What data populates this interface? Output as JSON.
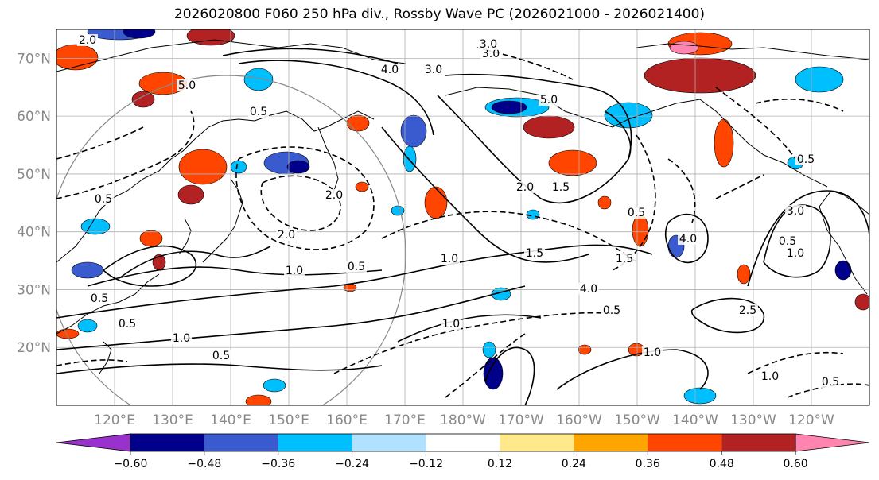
{
  "title": "2026020800 F060 250 hPa div., Rossby Wave PC (2026021000 - 2026021400)",
  "map": {
    "lon_range_deg_east": [
      110,
      250
    ],
    "lat_range_deg": [
      10,
      75
    ],
    "lat_ticks": [
      "70°N",
      "60°N",
      "50°N",
      "40°N",
      "30°N",
      "20°N"
    ],
    "lon_ticks": [
      "120°E",
      "130°E",
      "140°E",
      "150°E",
      "160°E",
      "170°E",
      "180°W",
      "170°W",
      "160°W",
      "150°W",
      "140°W",
      "130°W",
      "120°W"
    ],
    "gridlines": true,
    "coastlines": true,
    "colors": {
      "land_line": "#000000",
      "grid": "#b0b0b0",
      "range_circle": "#888888"
    }
  },
  "contour_labels": {
    "solid": [
      "1.0",
      "1.0",
      "1.0",
      "1.0",
      "1.0",
      "1.5",
      "1.5",
      "2.0",
      "2.0",
      "3.0",
      "3.0",
      "3.0",
      "4.0",
      "4.0",
      "5.0",
      "5.0",
      "2.0",
      "1.0",
      "1.0"
    ],
    "dashed": [
      "0.5",
      "0.5",
      "0.5",
      "0.5",
      "0.5",
      "0.5",
      "0.5",
      "0.5",
      "0.5",
      "0.5",
      "0.5",
      "1.5",
      "2.0",
      "2.5",
      "3.0",
      "4.0"
    ]
  },
  "colorbar": {
    "tick_labels": [
      "−0.60",
      "−0.48",
      "−0.36",
      "−0.24",
      "−0.12",
      "0.12",
      "0.24",
      "0.36",
      "0.48",
      "0.60"
    ],
    "colors": [
      "#9932cc",
      "#00008b",
      "#3a5bcf",
      "#00bfff",
      "#b0e2ff",
      "#ffffff",
      "#ffe98a",
      "#ffa500",
      "#ff4500",
      "#b22222",
      "#ff85b0"
    ],
    "extend": "both"
  },
  "chart_data": {
    "type": "heatmap",
    "title": "2026020800 F060 250 hPa div., Rossby Wave PC (2026021000 - 2026021400)",
    "field": "250 hPa divergence (shaded) with Rossby Wave PC contours",
    "x_ticks": [
      "120°E",
      "130°E",
      "140°E",
      "150°E",
      "160°E",
      "170°E",
      "180°W",
      "170°W",
      "160°W",
      "150°W",
      "140°W",
      "130°W",
      "120°W"
    ],
    "y_ticks": [
      "20°N",
      "30°N",
      "40°N",
      "50°N",
      "60°N",
      "70°N"
    ],
    "levels": [
      -0.6,
      -0.48,
      -0.36,
      -0.24,
      -0.12,
      0.12,
      0.24,
      0.36,
      0.48,
      0.6
    ],
    "extend": "both"
  }
}
